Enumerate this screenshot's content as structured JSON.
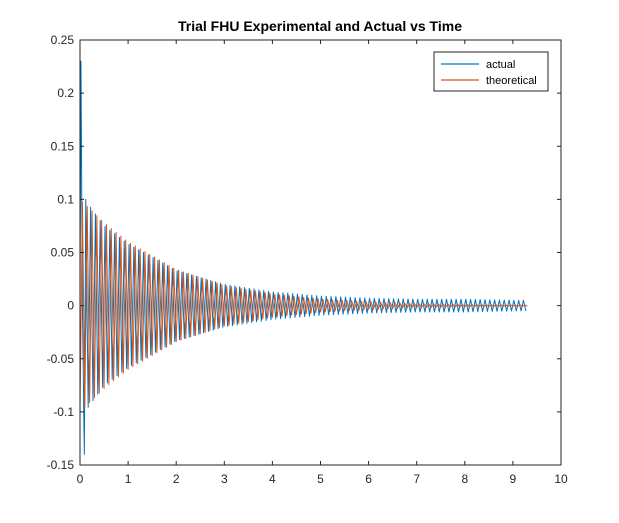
{
  "chart_data": {
    "type": "line",
    "title": "Trial FHU Experimental and Actual vs Time",
    "xlabel": "",
    "ylabel": "",
    "xlim": [
      0,
      10
    ],
    "ylim": [
      -0.15,
      0.25
    ],
    "x_ticks": [
      0,
      1,
      2,
      3,
      4,
      5,
      6,
      7,
      8,
      9,
      10
    ],
    "x_tick_labels": [
      "0",
      "1",
      "2",
      "3",
      "4",
      "5",
      "6",
      "7",
      "8",
      "9",
      "10"
    ],
    "y_ticks": [
      -0.15,
      -0.1,
      -0.05,
      0,
      0.05,
      0.1,
      0.15,
      0.2,
      0.25
    ],
    "y_tick_labels": [
      "-0.15",
      "-0.1",
      "-0.05",
      "0",
      "0.05",
      "0.1",
      "0.15",
      "0.2",
      "0.25"
    ],
    "grid": false,
    "legend_position": "top-right",
    "series": [
      {
        "name": "actual",
        "color": "#0072BD",
        "model": "damped-oscillation",
        "t_end": 9.3,
        "period": 0.1,
        "spike_points": [
          [
            0.0,
            0.0
          ],
          [
            0.02,
            0.23
          ],
          [
            0.05,
            0.0
          ],
          [
            0.09,
            -0.14
          ],
          [
            0.12,
            0.1
          ]
        ],
        "envelope": [
          [
            0.1,
            0.1
          ],
          [
            0.5,
            0.075
          ],
          [
            1.0,
            0.058
          ],
          [
            2.0,
            0.033
          ],
          [
            3.0,
            0.02
          ],
          [
            4.0,
            0.013
          ],
          [
            5.0,
            0.009
          ],
          [
            6.0,
            0.007
          ],
          [
            7.0,
            0.006
          ],
          [
            8.0,
            0.006
          ],
          [
            9.0,
            0.005
          ],
          [
            9.3,
            0.005
          ]
        ],
        "offset": 0.0
      },
      {
        "name": "theoretical",
        "color": "#D95319",
        "model": "damped-oscillation",
        "t_end": 9.3,
        "period": 0.1,
        "start_value": -0.1,
        "envelope": [
          [
            0.0,
            0.1
          ],
          [
            0.5,
            0.078
          ],
          [
            1.0,
            0.06
          ],
          [
            2.0,
            0.034
          ],
          [
            3.0,
            0.019
          ],
          [
            4.0,
            0.011
          ],
          [
            5.0,
            0.006
          ],
          [
            6.0,
            0.0035
          ],
          [
            7.0,
            0.002
          ],
          [
            8.0,
            0.0012
          ],
          [
            9.0,
            0.0007
          ],
          [
            9.3,
            0.0006
          ]
        ],
        "offset": 0.0
      }
    ]
  }
}
